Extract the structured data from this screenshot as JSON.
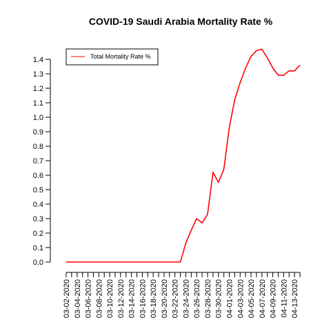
{
  "chart_data": {
    "type": "line",
    "title": "COVID-19 Saudi Arabia Mortality Rate %",
    "xlabel": "",
    "ylabel": "",
    "ylim": [
      0,
      1.4
    ],
    "yticks": [
      "0.0",
      "0.1",
      "0.2",
      "0.3",
      "0.4",
      "0.5",
      "0.6",
      "0.7",
      "0.8",
      "0.9",
      "1.0",
      "1.1",
      "1.2",
      "1.3",
      "1.4"
    ],
    "grid": false,
    "legend_position": "top-left",
    "x": [
      "03-02-2020",
      "03-03-2020",
      "03-04-2020",
      "03-05-2020",
      "03-06-2020",
      "03-07-2020",
      "03-08-2020",
      "03-09-2020",
      "03-10-2020",
      "03-11-2020",
      "03-12-2020",
      "03-13-2020",
      "03-14-2020",
      "03-15-2020",
      "03-16-2020",
      "03-17-2020",
      "03-18-2020",
      "03-19-2020",
      "03-20-2020",
      "03-21-2020",
      "03-22-2020",
      "03-23-2020",
      "03-24-2020",
      "03-25-2020",
      "03-26-2020",
      "03-27-2020",
      "03-28-2020",
      "03-29-2020",
      "03-30-2020",
      "03-31-2020",
      "04-01-2020",
      "04-02-2020",
      "04-03-2020",
      "04-04-2020",
      "04-05-2020",
      "04-06-2020",
      "04-07-2020",
      "04-08-2020",
      "04-09-2020",
      "04-10-2020",
      "04-11-2020",
      "04-12-2020",
      "04-13-2020",
      "04-14-2020"
    ],
    "xtick_labels": [
      "03-02-2020",
      "03-04-2020",
      "03-06-2020",
      "03-08-2020",
      "03-10-2020",
      "03-12-2020",
      "03-14-2020",
      "03-16-2020",
      "03-18-2020",
      "03-20-2020",
      "03-22-2020",
      "03-24-2020",
      "03-26-2020",
      "03-28-2020",
      "03-30-2020",
      "04-01-2020",
      "04-03-2020",
      "04-05-2020",
      "04-07-2020",
      "04-09-2020",
      "04-11-2020",
      "04-13-2020"
    ],
    "series": [
      {
        "name": "Total Mortality Rate %",
        "color": "#ff0000",
        "values": [
          0,
          0,
          0,
          0,
          0,
          0,
          0,
          0,
          0,
          0,
          0,
          0,
          0,
          0,
          0,
          0,
          0,
          0,
          0,
          0,
          0,
          0,
          0.13,
          0.22,
          0.3,
          0.27,
          0.33,
          0.62,
          0.55,
          0.64,
          0.93,
          1.12,
          1.24,
          1.34,
          1.42,
          1.46,
          1.47,
          1.41,
          1.34,
          1.29,
          1.29,
          1.32,
          1.32,
          1.36
        ]
      }
    ]
  }
}
